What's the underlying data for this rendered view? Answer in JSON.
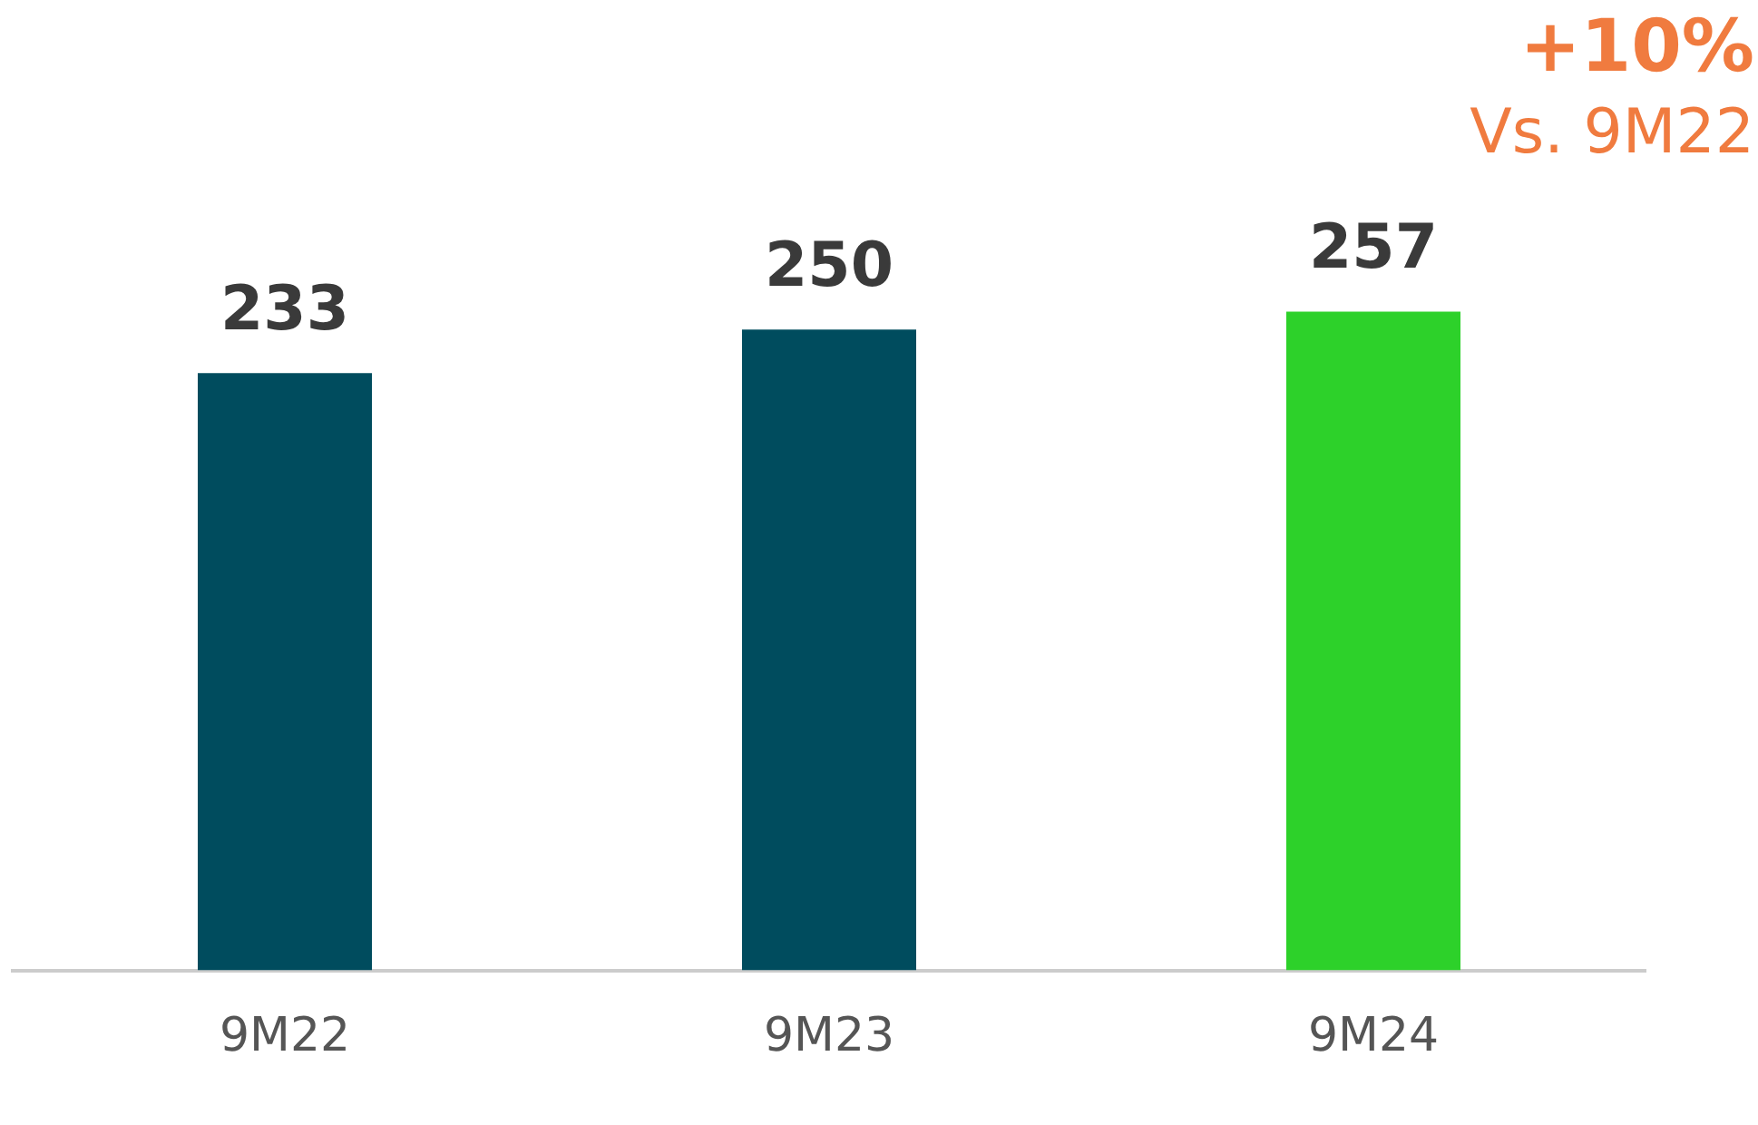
{
  "chart_data": {
    "type": "bar",
    "categories": [
      "9M22",
      "9M23",
      "9M24"
    ],
    "values": [
      233,
      250,
      257
    ],
    "colors": [
      "#004c5e",
      "#004c5e",
      "#2dd12a"
    ],
    "data_labels": true,
    "grid": false,
    "legend": false,
    "annotations": [
      "+10%",
      "Vs. 9M22"
    ]
  }
}
